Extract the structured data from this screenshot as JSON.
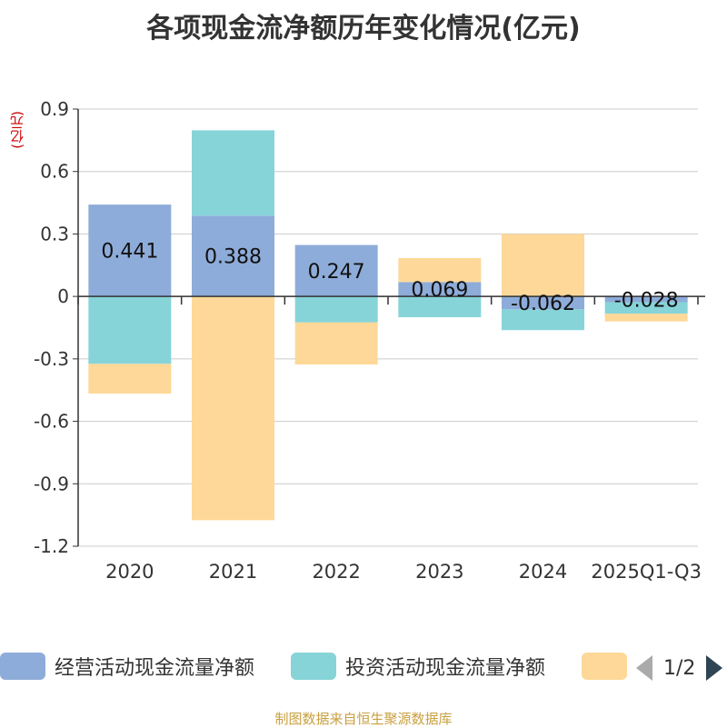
{
  "chart_data": {
    "type": "bar",
    "stacked": true,
    "title": "各项现金流净额历年变化情况(亿元)",
    "ylabel": "(亿元)",
    "ylim": [
      -1.2,
      0.9
    ],
    "yticks": [
      0.9,
      0.6,
      0.3,
      0,
      -0.3,
      -0.6,
      -0.9,
      -1.2
    ],
    "ytick_labels": [
      "0.9",
      "0.6",
      "0.3",
      "0",
      "-0.3",
      "-0.6",
      "-0.9",
      "-1.2"
    ],
    "categories": [
      "2020",
      "2021",
      "2022",
      "2023",
      "2024",
      "2025Q1-Q3"
    ],
    "series": [
      {
        "name": "经营活动现金流量净额",
        "color": "#8eacd9",
        "values": [
          0.441,
          0.388,
          0.247,
          0.069,
          -0.062,
          -0.028
        ],
        "labels": [
          "0.441",
          "0.388",
          "0.247",
          "0.069",
          "-0.062",
          "-0.028"
        ]
      },
      {
        "name": "投资活动现金流量净额",
        "color": "#86d4d8",
        "values": [
          -0.324,
          0.41,
          -0.125,
          -0.1,
          -0.1,
          -0.055
        ]
      },
      {
        "name": "",
        "color": "#fdd898",
        "values": [
          -0.143,
          -1.075,
          -0.202,
          0.115,
          0.3,
          -0.037
        ]
      }
    ],
    "legend": {
      "position": "bottom",
      "page": "1/2"
    }
  },
  "source": "制图数据来自恒生聚源数据库"
}
